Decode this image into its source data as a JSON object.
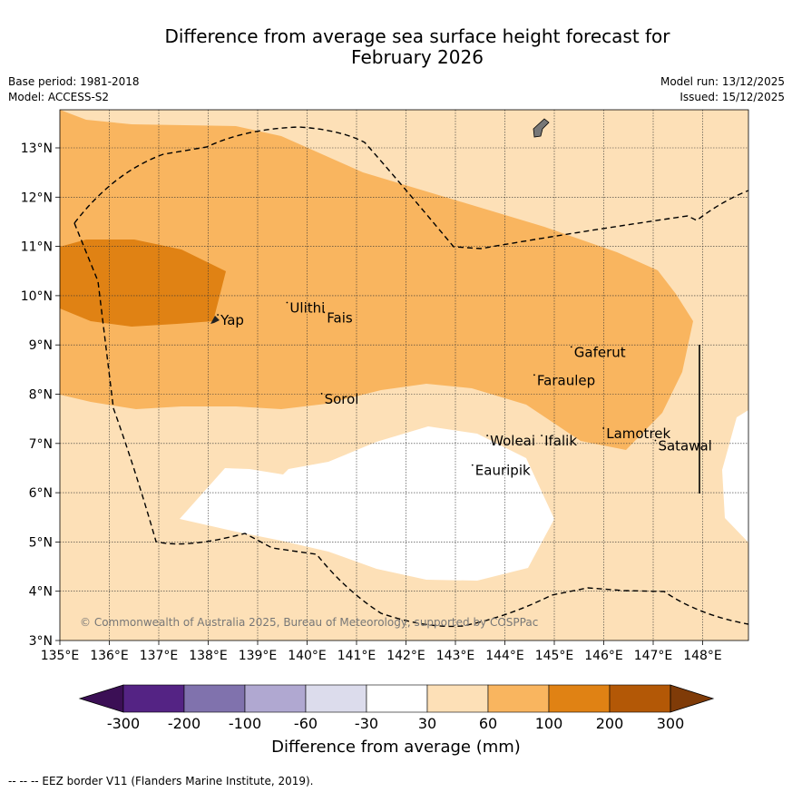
{
  "title": {
    "line1": "Difference from average sea surface height forecast for",
    "line2": "February 2026"
  },
  "meta": {
    "base_period": "Base period: 1981-2018",
    "model": "Model: ACCESS-S2",
    "model_run": "Model run: 13/12/2025",
    "issued": "Issued: 15/12/2025"
  },
  "map": {
    "lon_ticks": [
      "135°E",
      "136°E",
      "137°E",
      "138°E",
      "139°E",
      "140°E",
      "141°E",
      "142°E",
      "143°E",
      "144°E",
      "145°E",
      "146°E",
      "147°E",
      "148°E"
    ],
    "lat_ticks": [
      "3°N",
      "4°N",
      "5°N",
      "6°N",
      "7°N",
      "8°N",
      "9°N",
      "10°N",
      "11°N",
      "12°N",
      "13°N"
    ],
    "places": [
      {
        "name": "Yap",
        "lon": 138.25,
        "lat": 9.5
      },
      {
        "name": "Ulithi",
        "lon": 139.65,
        "lat": 9.75
      },
      {
        "name": "Fais",
        "lon": 140.4,
        "lat": 9.55
      },
      {
        "name": "Gaferut",
        "lon": 145.4,
        "lat": 8.85
      },
      {
        "name": "Faraulep",
        "lon": 144.65,
        "lat": 8.28
      },
      {
        "name": "Sorol",
        "lon": 140.35,
        "lat": 7.9
      },
      {
        "name": "Woleai",
        "lon": 143.7,
        "lat": 7.05
      },
      {
        "name": "Ifalik",
        "lon": 144.8,
        "lat": 7.05
      },
      {
        "name": "Lamotrek",
        "lon": 146.05,
        "lat": 7.2
      },
      {
        "name": "Satawal",
        "lon": 147.1,
        "lat": 6.95
      },
      {
        "name": "Eauripik",
        "lon": 143.4,
        "lat": 6.45
      }
    ],
    "copyright": "© Commonwealth of Australia 2025, Bureau of Meteorology, supported by COSPPac"
  },
  "colorbar": {
    "ticks": [
      "-300",
      "-200",
      "-100",
      "-60",
      "-30",
      "30",
      "60",
      "100",
      "200",
      "300"
    ],
    "colors": [
      "#3b0f55",
      "#542384",
      "#8072ad",
      "#b0a8d1",
      "#dcdcec",
      "#ffffff",
      "#fde0b7",
      "#f9b55f",
      "#e08214",
      "#b35806",
      "#7f3b08"
    ],
    "label": "Difference from average (mm)"
  },
  "footer": "--  --  -- EEZ border V11 (Flanders Marine Institute, 2019)."
}
